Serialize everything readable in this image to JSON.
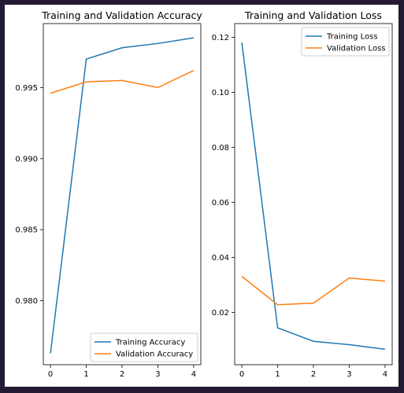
{
  "colors": {
    "training": "#1f77b4",
    "validation": "#ff7f0e",
    "background": "#241a33"
  },
  "chart_data": [
    {
      "type": "line",
      "title": "Training and Validation Accuracy",
      "x": [
        0,
        1,
        2,
        3,
        4
      ],
      "x_ticks": [
        "0",
        "1",
        "2",
        "3",
        "4"
      ],
      "y_ticks": [
        "0.980",
        "0.985",
        "0.990",
        "0.995"
      ],
      "xlim": [
        -0.2,
        4.2
      ],
      "ylim": [
        0.9755,
        0.9995
      ],
      "grid": false,
      "legend_position": "lower-right",
      "series": [
        {
          "name": "Training Accuracy",
          "color": "#1f77b4",
          "values": [
            0.9763,
            0.997,
            0.9978,
            0.9981,
            0.9985
          ]
        },
        {
          "name": "Validation Accuracy",
          "color": "#ff7f0e",
          "values": [
            0.9946,
            0.9954,
            0.9955,
            0.995,
            0.9962
          ]
        }
      ]
    },
    {
      "type": "line",
      "title": "Training and Validation Loss",
      "x": [
        0,
        1,
        2,
        3,
        4
      ],
      "x_ticks": [
        "0",
        "1",
        "2",
        "3",
        "4"
      ],
      "y_ticks": [
        "0.02",
        "0.04",
        "0.06",
        "0.08",
        "0.10",
        "0.12"
      ],
      "xlim": [
        -0.2,
        4.2
      ],
      "ylim": [
        0.001,
        0.125
      ],
      "grid": false,
      "legend_position": "upper-right",
      "series": [
        {
          "name": "Training Loss",
          "color": "#1f77b4",
          "values": [
            0.1181,
            0.0144,
            0.0095,
            0.0083,
            0.0066
          ]
        },
        {
          "name": "Validation Loss",
          "color": "#ff7f0e",
          "values": [
            0.0331,
            0.0228,
            0.0234,
            0.0325,
            0.0314
          ]
        }
      ]
    }
  ]
}
